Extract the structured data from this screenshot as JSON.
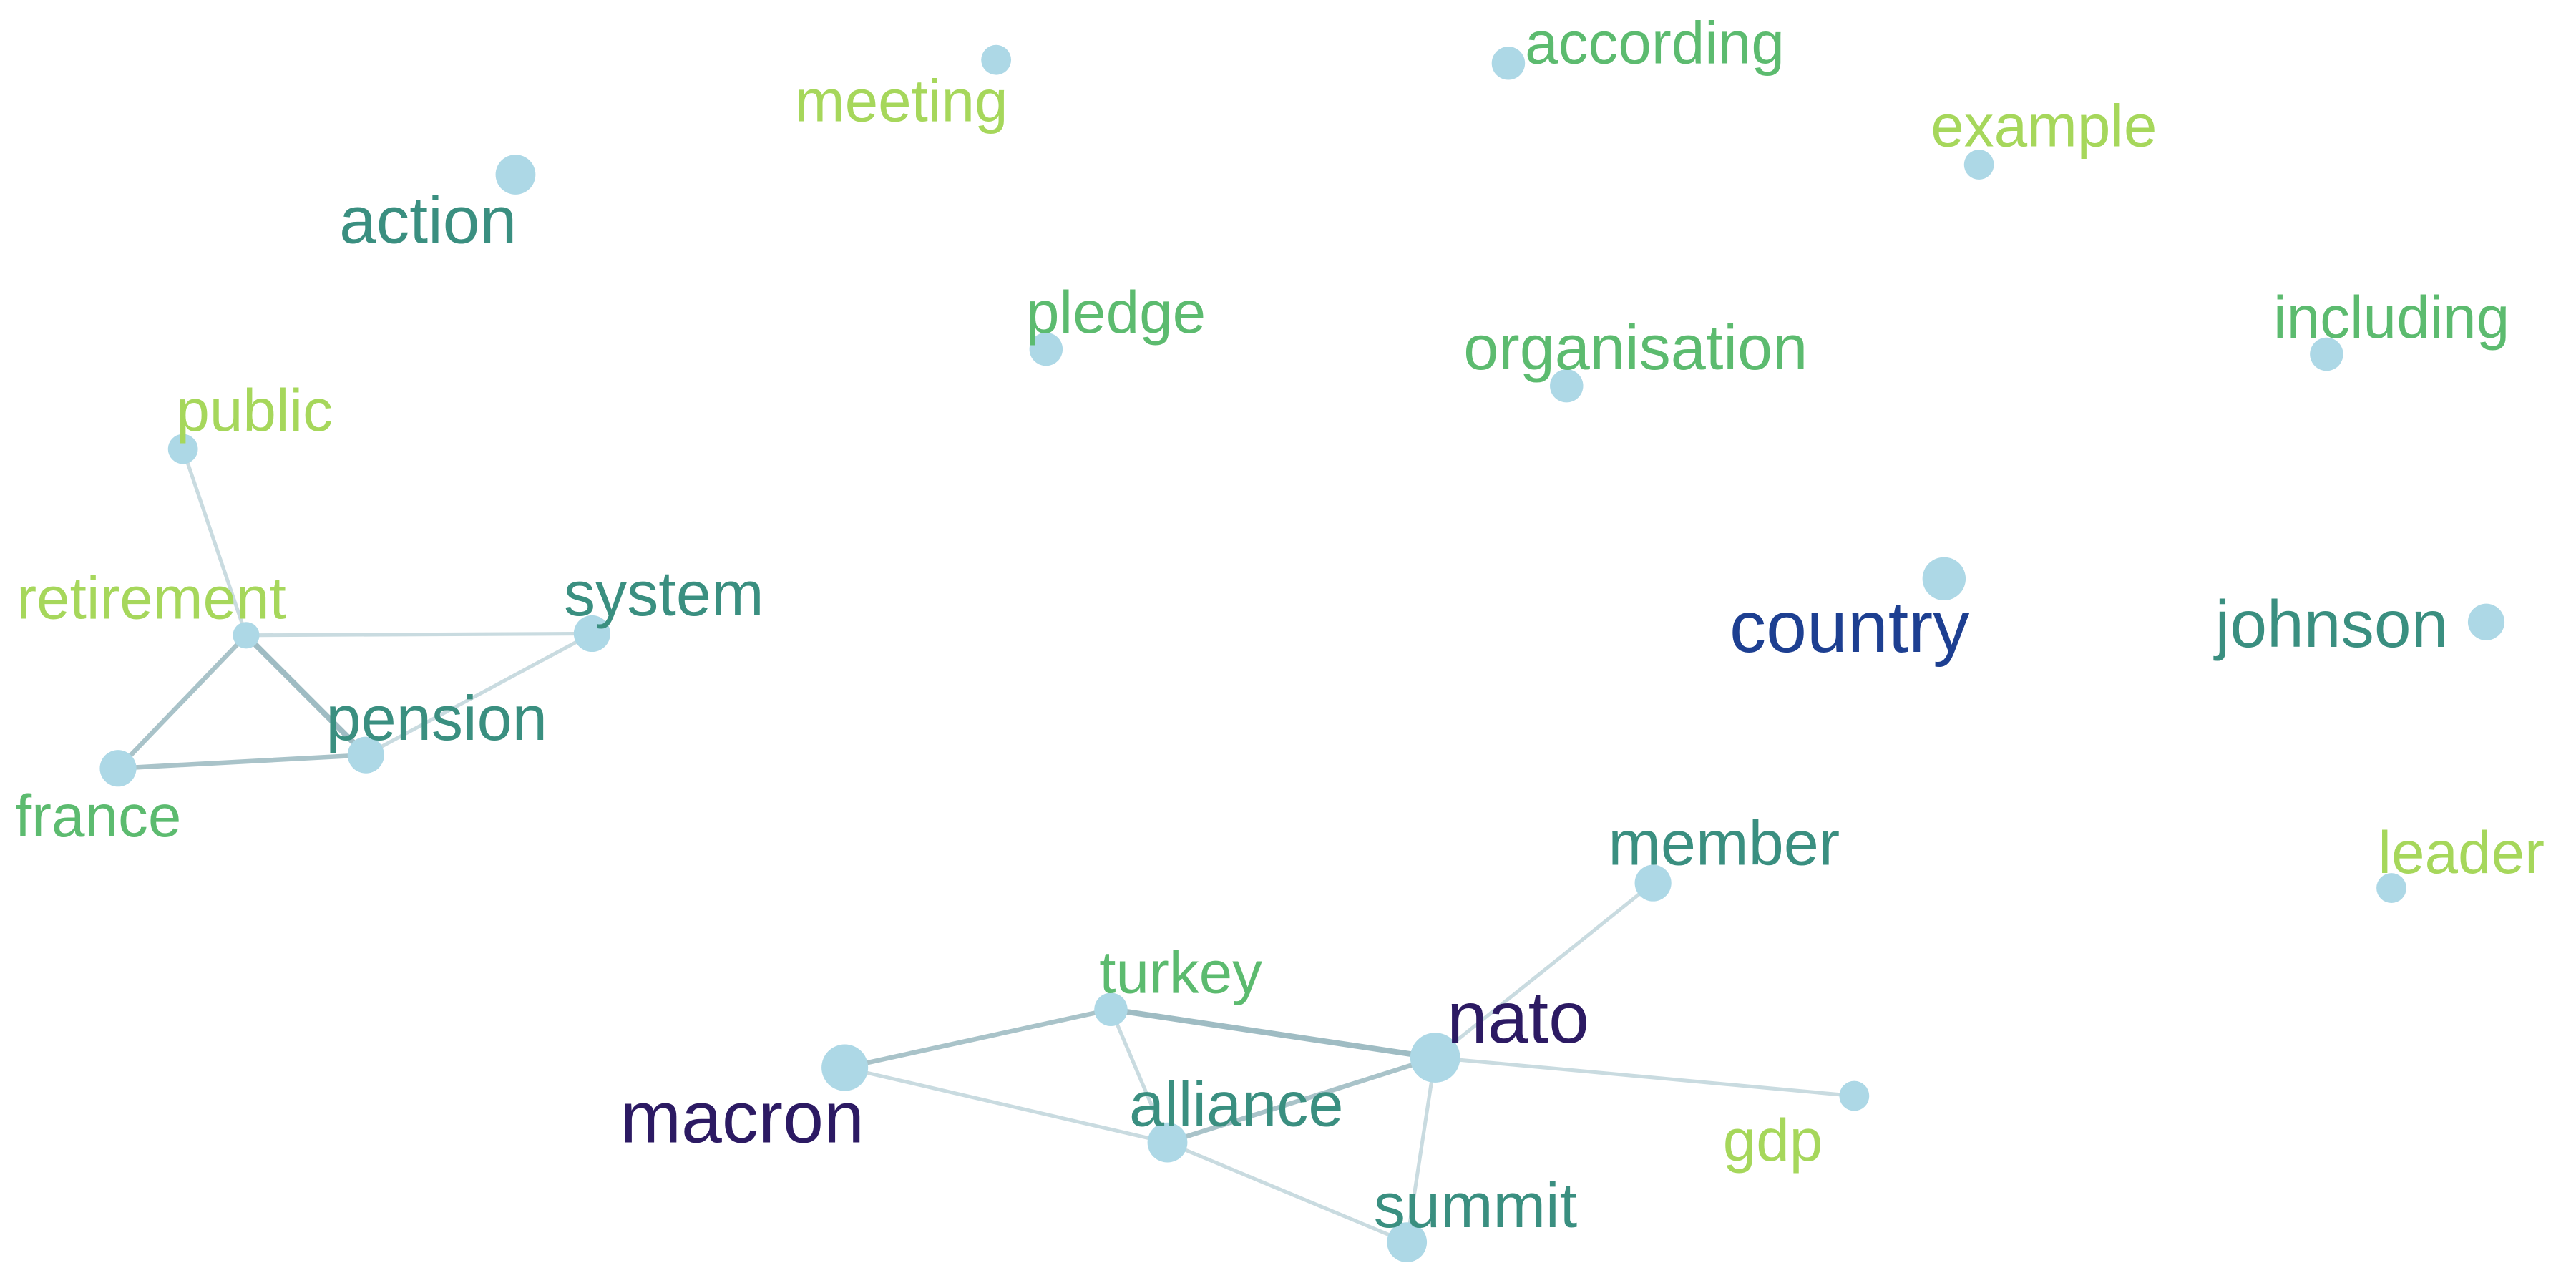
{
  "diagram": {
    "type": "word-cooccurrence-network",
    "node_color": "#add8e6",
    "nodes": [
      {
        "id": "meeting",
        "label": "meeting",
        "color": "#a6d75b"
      },
      {
        "id": "according",
        "label": "according",
        "color": "#5cbb6f"
      },
      {
        "id": "example",
        "label": "example",
        "color": "#a6d75b"
      },
      {
        "id": "action",
        "label": "action",
        "color": "#3a8f80"
      },
      {
        "id": "pledge",
        "label": "pledge",
        "color": "#5cbb6f"
      },
      {
        "id": "organisation",
        "label": "organisation",
        "color": "#5cbb6f"
      },
      {
        "id": "including",
        "label": "including",
        "color": "#5cbb6f"
      },
      {
        "id": "public",
        "label": "public",
        "color": "#a6d75b"
      },
      {
        "id": "retirement",
        "label": "retirement",
        "color": "#a6d75b"
      },
      {
        "id": "system",
        "label": "system",
        "color": "#3a8f80"
      },
      {
        "id": "pension",
        "label": "pension",
        "color": "#3a8f80"
      },
      {
        "id": "france",
        "label": "france",
        "color": "#5cbb6f"
      },
      {
        "id": "country",
        "label": "country",
        "color": "#1d3f91"
      },
      {
        "id": "johnson",
        "label": "johnson",
        "color": "#3a8f80"
      },
      {
        "id": "member",
        "label": "member",
        "color": "#3a8f80"
      },
      {
        "id": "leader",
        "label": "leader",
        "color": "#a6d75b"
      },
      {
        "id": "turkey",
        "label": "turkey",
        "color": "#5cbb6f"
      },
      {
        "id": "nato",
        "label": "nato",
        "color": "#2c1a63"
      },
      {
        "id": "macron",
        "label": "macron",
        "color": "#2c1a63"
      },
      {
        "id": "alliance",
        "label": "alliance",
        "color": "#3a8f80"
      },
      {
        "id": "gdp",
        "label": "gdp",
        "color": "#a6d75b"
      },
      {
        "id": "summit",
        "label": "summit",
        "color": "#3a8f80"
      }
    ],
    "edges": [
      {
        "source": "public",
        "target": "retirement",
        "weight": 1
      },
      {
        "source": "retirement",
        "target": "system",
        "weight": 1
      },
      {
        "source": "retirement",
        "target": "pension",
        "weight": 3
      },
      {
        "source": "retirement",
        "target": "france",
        "weight": 2
      },
      {
        "source": "france",
        "target": "pension",
        "weight": 2
      },
      {
        "source": "pension",
        "target": "system",
        "weight": 1
      },
      {
        "source": "macron",
        "target": "turkey",
        "weight": 2
      },
      {
        "source": "macron",
        "target": "alliance",
        "weight": 1
      },
      {
        "source": "turkey",
        "target": "nato",
        "weight": 3
      },
      {
        "source": "turkey",
        "target": "alliance",
        "weight": 1
      },
      {
        "source": "alliance",
        "target": "nato",
        "weight": 2
      },
      {
        "source": "alliance",
        "target": "summit",
        "weight": 1
      },
      {
        "source": "nato",
        "target": "summit",
        "weight": 1
      },
      {
        "source": "nato",
        "target": "member",
        "weight": 1
      },
      {
        "source": "nato",
        "target": "gdp",
        "weight": 1
      }
    ]
  }
}
